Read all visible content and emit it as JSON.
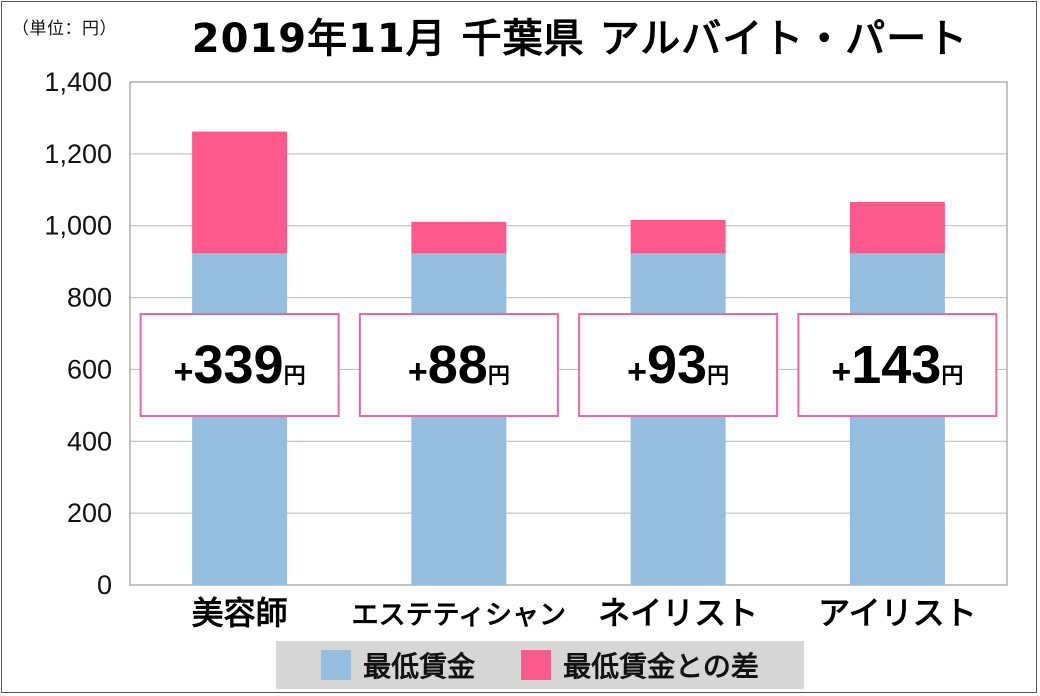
{
  "chart_data": {
    "type": "bar",
    "stacked": true,
    "title": "2019年11月 千葉県 アルバイト・パート",
    "unit_label": "（単位：円）",
    "categories": [
      "美容師",
      "エステティシャン",
      "ネイリスト",
      "アイリスト"
    ],
    "series": [
      {
        "name": "最低賃金",
        "values": [
          923,
          923,
          923,
          923
        ],
        "color": "#93bedf"
      },
      {
        "name": "最低賃金との差",
        "values": [
          339,
          88,
          93,
          143
        ],
        "color": "#ff5a8c"
      }
    ],
    "difference_labels": [
      {
        "prefix": "+",
        "number": "339",
        "unit": "円"
      },
      {
        "prefix": "+",
        "number": "88",
        "unit": "円"
      },
      {
        "prefix": "+",
        "number": "93",
        "unit": "円"
      },
      {
        "prefix": "+",
        "number": "143",
        "unit": "円"
      }
    ],
    "y_ticks": [
      "0",
      "200",
      "400",
      "600",
      "800",
      "1,000",
      "1,200",
      "1,400"
    ],
    "ylim": [
      0,
      1400
    ],
    "grid": true,
    "legend_position": "bottom"
  }
}
